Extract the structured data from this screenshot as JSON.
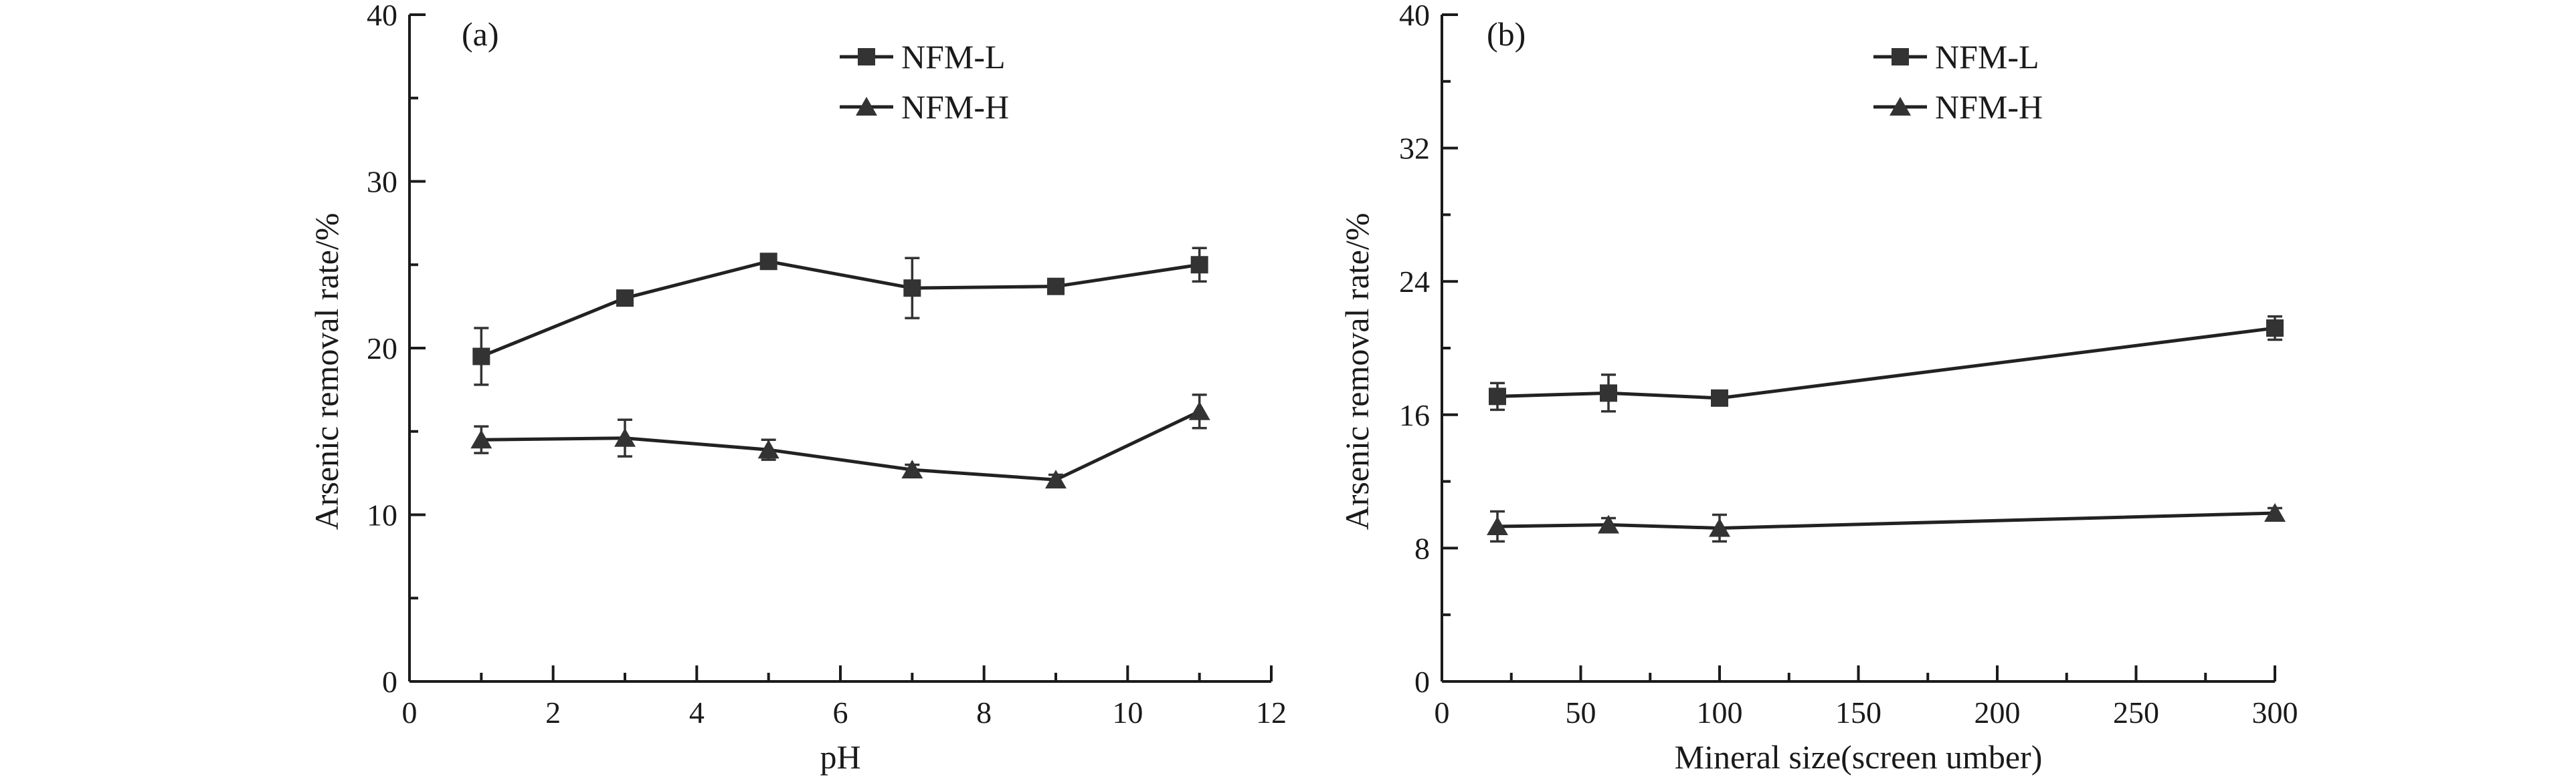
{
  "colors": {
    "axis": "#1a1a1a",
    "series": "#333333",
    "background": "#ffffff"
  },
  "chart_data": [
    {
      "type": "line",
      "panel_label": "(a)",
      "xlabel": "pH",
      "ylabel": "Arsenic removal rate/%",
      "xlim": [
        0,
        12
      ],
      "ylim": [
        0,
        40
      ],
      "xticks": [
        0,
        2,
        4,
        6,
        8,
        10,
        12
      ],
      "yticks": [
        0,
        10,
        20,
        30,
        40
      ],
      "x_minor_step": 1,
      "y_minor_step": 5,
      "grid": false,
      "legend_position": "top-right",
      "series": [
        {
          "name": "NFM-L",
          "marker": "square",
          "x": [
            1,
            3,
            5,
            7,
            9,
            11
          ],
          "values": [
            19.5,
            23.0,
            25.2,
            23.6,
            23.7,
            25.0
          ],
          "errors": [
            1.7,
            0.3,
            0.3,
            1.8,
            0.3,
            1.0
          ]
        },
        {
          "name": "NFM-H",
          "marker": "triangle",
          "x": [
            1,
            3,
            5,
            7,
            9,
            11
          ],
          "values": [
            14.5,
            14.6,
            13.9,
            12.7,
            12.1,
            16.2
          ],
          "errors": [
            0.8,
            1.1,
            0.6,
            0.3,
            0.3,
            1.0
          ]
        }
      ]
    },
    {
      "type": "line",
      "panel_label": "(b)",
      "xlabel": "Mineral size(screen umber)",
      "ylabel": "Arsenic removal rate/%",
      "xlim": [
        0,
        300
      ],
      "ylim": [
        0,
        40
      ],
      "xticks": [
        0,
        50,
        100,
        150,
        200,
        250,
        300
      ],
      "yticks": [
        0,
        8,
        16,
        24,
        32,
        40
      ],
      "x_minor_step": 25,
      "y_minor_step": 4,
      "grid": false,
      "legend_position": "top-right",
      "series": [
        {
          "name": "NFM-L",
          "marker": "square",
          "x": [
            20,
            60,
            100,
            300
          ],
          "values": [
            17.1,
            17.3,
            17.0,
            21.2
          ],
          "errors": [
            0.8,
            1.1,
            0.3,
            0.7
          ]
        },
        {
          "name": "NFM-H",
          "marker": "triangle",
          "x": [
            20,
            60,
            100,
            300
          ],
          "values": [
            9.3,
            9.4,
            9.2,
            10.1
          ],
          "errors": [
            0.9,
            0.4,
            0.8,
            0.3
          ]
        }
      ]
    }
  ]
}
